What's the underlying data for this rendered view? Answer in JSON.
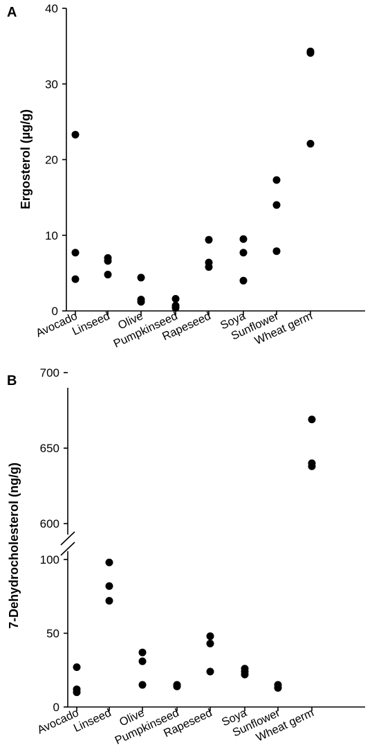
{
  "chart_data": [
    {
      "panel": "A",
      "type": "scatter",
      "ylabel": "Ergosterol (µg/g)",
      "ylim": [
        0,
        40
      ],
      "yticks": [
        0,
        10,
        20,
        30,
        40
      ],
      "categories": [
        "Avocado",
        "Linseed",
        "Olive",
        "Pumpkinseed",
        "Rapeseed",
        "Soya",
        "Sunflower",
        "Wheat germ"
      ],
      "values": [
        [
          23.3,
          7.7,
          4.2
        ],
        [
          7.0,
          6.6,
          4.8
        ],
        [
          4.4,
          1.5,
          1.2
        ],
        [
          1.6,
          0.7,
          0.4
        ],
        [
          9.4,
          6.4,
          5.8
        ],
        [
          9.5,
          7.7,
          4.0
        ],
        [
          17.3,
          14.0,
          7.9
        ],
        [
          34.3,
          34.1,
          22.1
        ]
      ]
    },
    {
      "panel": "B",
      "type": "scatter",
      "ylabel": "7-Dehydrocholesterol (ng/g)",
      "ylim": [
        0,
        700
      ],
      "axis_break": [
        100,
        590
      ],
      "yticks": [
        0,
        50,
        100,
        600,
        650,
        700
      ],
      "categories": [
        "Avocado",
        "Linseed",
        "Olive",
        "Pumpkinseed",
        "Rapeseed",
        "Soya",
        "Sunflower",
        "Wheat germ"
      ],
      "values": [
        [
          27,
          12,
          10
        ],
        [
          98,
          82,
          72
        ],
        [
          37,
          31,
          15
        ],
        [
          15,
          14,
          14
        ],
        [
          48,
          43,
          24
        ],
        [
          26,
          24,
          22
        ],
        [
          15,
          13,
          13
        ],
        [
          669,
          640,
          638
        ]
      ]
    }
  ]
}
